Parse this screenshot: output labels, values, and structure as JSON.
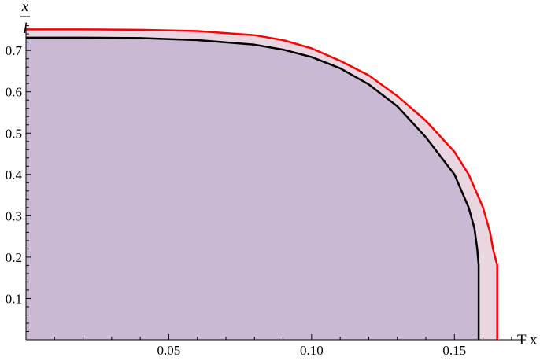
{
  "chart_data": {
    "type": "area",
    "x_axis": {
      "label": "T x",
      "range": [
        0,
        0.175
      ],
      "ticks": [
        0.05,
        0.1,
        0.15
      ],
      "tick_labels": [
        "0.05",
        "0.10",
        "0.15"
      ]
    },
    "y_axis": {
      "label_numerator": "x",
      "label_denominator": "l",
      "range": [
        0,
        0.765
      ],
      "ticks": [
        0.1,
        0.2,
        0.3,
        0.4,
        0.5,
        0.6,
        0.7
      ],
      "tick_labels": [
        "0.1",
        "0.2",
        "0.3",
        "0.4",
        "0.5",
        "0.6",
        "0.7"
      ]
    },
    "grid": false,
    "series": [
      {
        "color": "#ff0000",
        "fill": "#ead6e1",
        "points": [
          [
            0.0,
            0.751
          ],
          [
            0.02,
            0.751
          ],
          [
            0.04,
            0.75
          ],
          [
            0.06,
            0.747
          ],
          [
            0.08,
            0.737
          ],
          [
            0.09,
            0.725
          ],
          [
            0.1,
            0.705
          ],
          [
            0.11,
            0.675
          ],
          [
            0.12,
            0.64
          ],
          [
            0.13,
            0.59
          ],
          [
            0.14,
            0.53
          ],
          [
            0.15,
            0.455
          ],
          [
            0.155,
            0.4
          ],
          [
            0.16,
            0.32
          ],
          [
            0.1625,
            0.26
          ],
          [
            0.1635,
            0.22
          ],
          [
            0.165,
            0.18
          ],
          [
            0.165,
            0.0
          ]
        ]
      },
      {
        "color": "#000000",
        "fill": "#c9b9d2",
        "points": [
          [
            0.0,
            0.731
          ],
          [
            0.02,
            0.731
          ],
          [
            0.04,
            0.73
          ],
          [
            0.06,
            0.725
          ],
          [
            0.08,
            0.714
          ],
          [
            0.09,
            0.702
          ],
          [
            0.1,
            0.684
          ],
          [
            0.11,
            0.657
          ],
          [
            0.12,
            0.618
          ],
          [
            0.13,
            0.565
          ],
          [
            0.14,
            0.49
          ],
          [
            0.15,
            0.4
          ],
          [
            0.155,
            0.32
          ],
          [
            0.157,
            0.27
          ],
          [
            0.158,
            0.22
          ],
          [
            0.1585,
            0.18
          ],
          [
            0.1585,
            0.0
          ]
        ]
      }
    ]
  }
}
